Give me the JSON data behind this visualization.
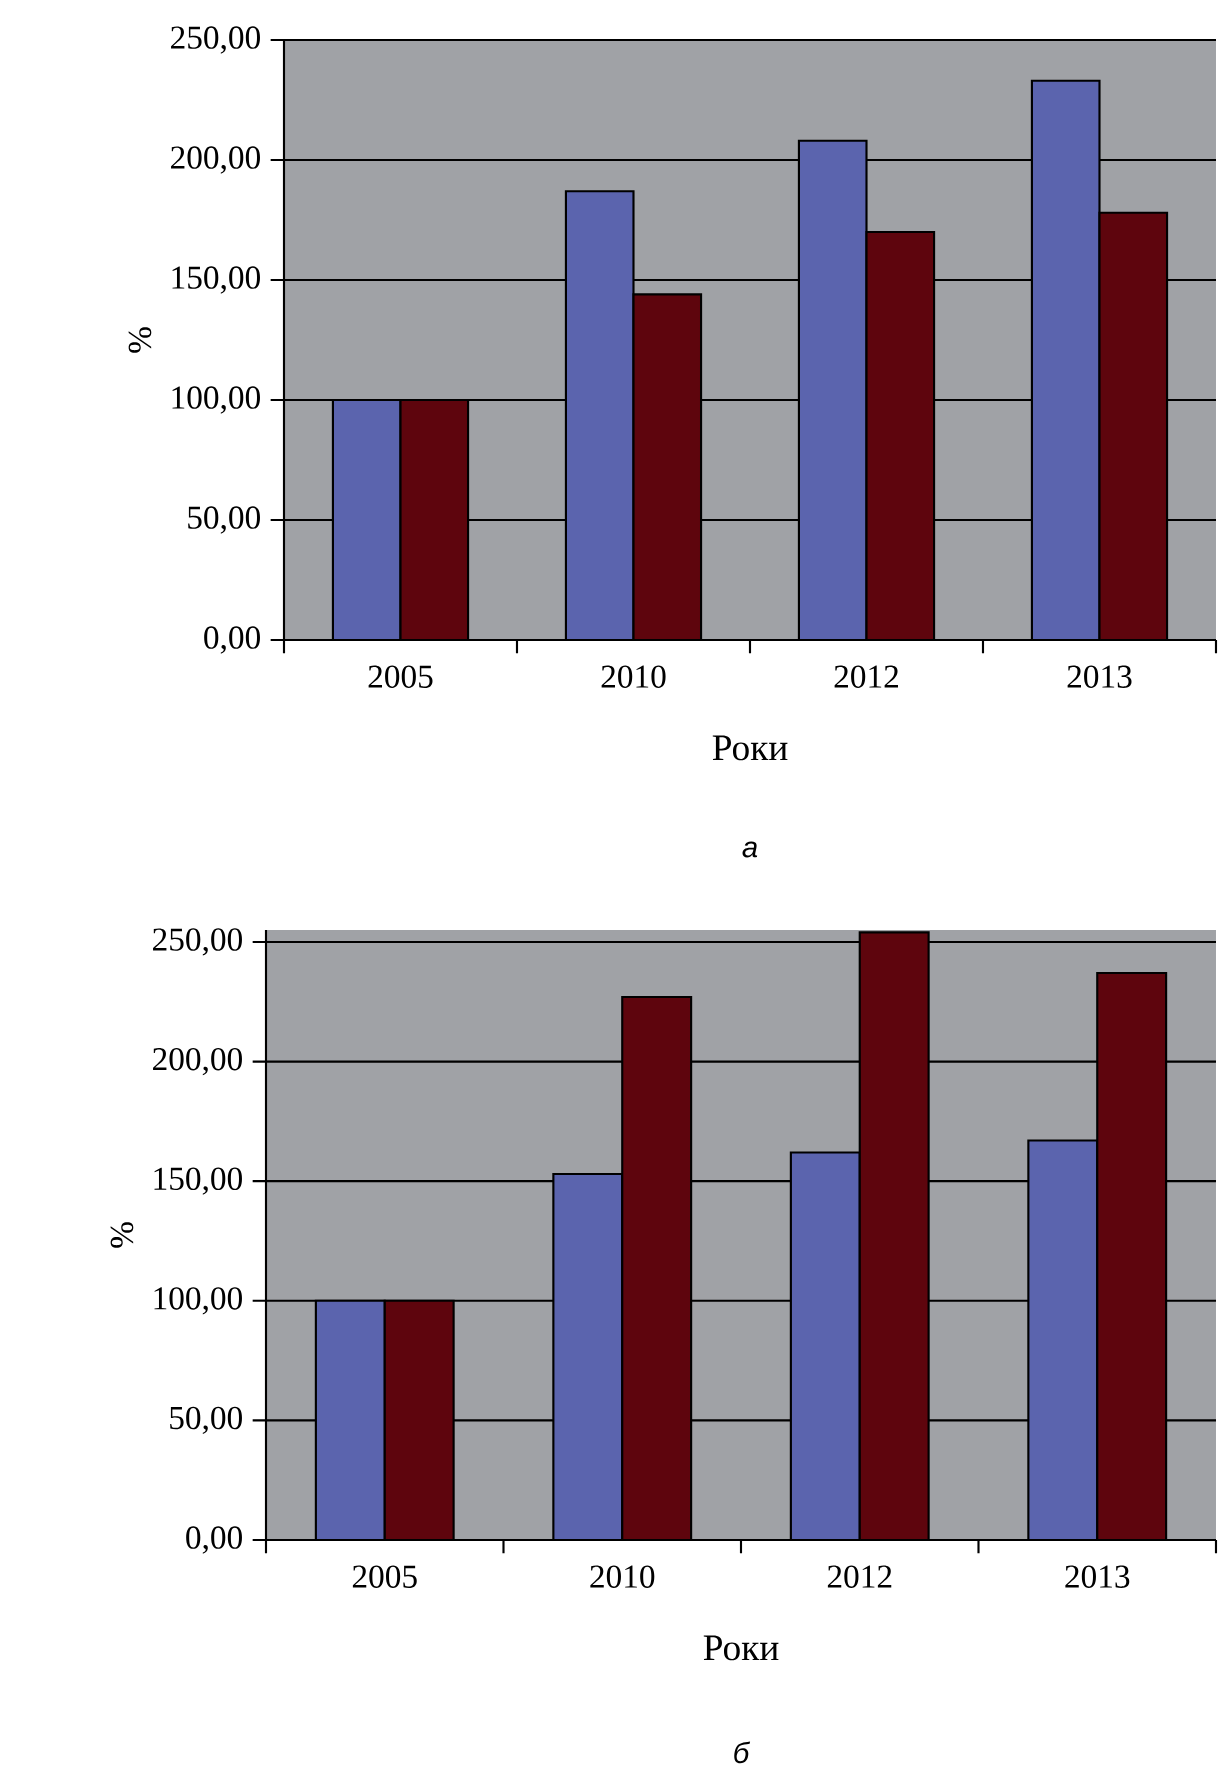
{
  "chart_data": [
    {
      "type": "bar",
      "categories": [
        "2005",
        "2010",
        "2012",
        "2013"
      ],
      "series": [
        {
          "color": "#5b64ae",
          "values": [
            100,
            187,
            208,
            233
          ]
        },
        {
          "color": "#5e050d",
          "values": [
            100,
            144,
            170,
            178
          ]
        }
      ],
      "ylim": [
        0,
        250
      ],
      "yticks": [
        {
          "value": 0,
          "label": "0,00"
        },
        {
          "value": 50,
          "label": "50,00"
        },
        {
          "value": 100,
          "label": "100,00"
        },
        {
          "value": 150,
          "label": "150,00"
        },
        {
          "value": 200,
          "label": "200,00"
        },
        {
          "value": 250,
          "label": "250,00"
        }
      ],
      "xlabel": "Роки",
      "ylabel": "%",
      "grid": "y",
      "annotations": [
        "а"
      ]
    },
    {
      "type": "bar",
      "categories": [
        "2005",
        "2010",
        "2012",
        "2013"
      ],
      "series": [
        {
          "color": "#5b64ae",
          "values": [
            100,
            153,
            162,
            167
          ]
        },
        {
          "color": "#5e050d",
          "values": [
            100,
            227,
            254,
            237
          ]
        }
      ],
      "ylim": [
        0,
        255
      ],
      "yticks": [
        {
          "value": 0,
          "label": "0,00"
        },
        {
          "value": 50,
          "label": "50,00"
        },
        {
          "value": 100,
          "label": "100,00"
        },
        {
          "value": 150,
          "label": "150,00"
        },
        {
          "value": 200,
          "label": "200,00"
        },
        {
          "value": 250,
          "label": "250,00"
        }
      ],
      "xlabel": "Роки",
      "ylabel": "%",
      "grid": "y",
      "annotations": [
        "б"
      ]
    }
  ]
}
